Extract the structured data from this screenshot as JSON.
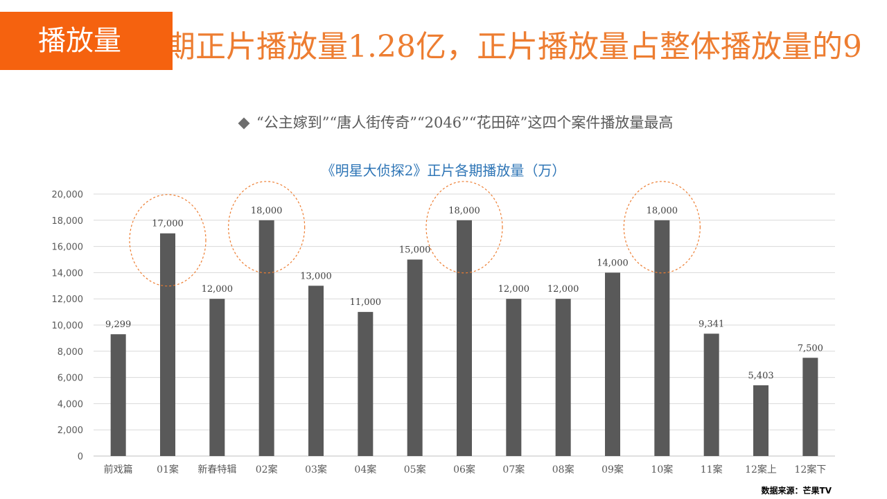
{
  "slide": {
    "headline": "期正片播放量1.28亿，正片播放量占整体播放量的9",
    "tag": "播放量",
    "bullet": "“公主嫁到”“唐人街传奇”“2046”“花田碎”这四个案件播放量最高",
    "source": "数据来源：芒果TV"
  },
  "chart_data": {
    "type": "bar",
    "title": "《明星大侦探2》正片各期播放量（万）",
    "categories": [
      "前戏篇",
      "01案",
      "新春特辑",
      "02案",
      "03案",
      "04案",
      "05案",
      "06案",
      "07案",
      "08案",
      "09案",
      "10案",
      "11案",
      "12案上",
      "12案下"
    ],
    "values": [
      9299,
      17000,
      12000,
      18000,
      13000,
      11000,
      15000,
      18000,
      12000,
      12000,
      14000,
      18000,
      9341,
      5403,
      7500
    ],
    "value_labels": [
      "9,299",
      "17,000",
      "12,000",
      "18,000",
      "13,000",
      "11,000",
      "15,000",
      "18,000",
      "12,000",
      "12,000",
      "14,000",
      "18,000",
      "9,341",
      "5,403",
      "7,500"
    ],
    "ylim": [
      0,
      20000
    ],
    "yticks": [
      "0",
      "2,000",
      "4,000",
      "6,000",
      "8,000",
      "10,000",
      "12,000",
      "14,000",
      "16,000",
      "18,000",
      "20,000"
    ],
    "grid": true,
    "bar_color": "#595959",
    "highlighted": [
      "01案",
      "02案",
      "06案",
      "10案"
    ],
    "highlight_color": "#ED7D31",
    "xlabel": "",
    "ylabel": ""
  }
}
